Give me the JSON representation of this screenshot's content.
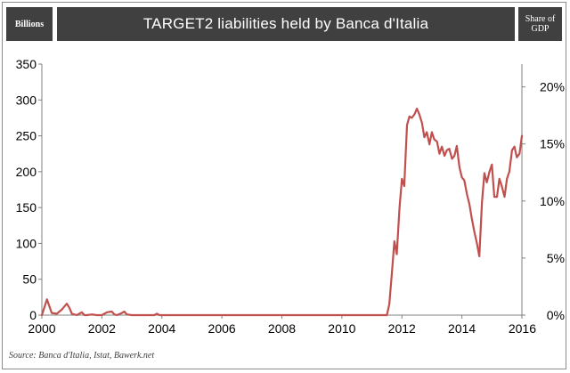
{
  "header": {
    "left_label": "Billions",
    "title": "TARGET2 liabilities held by Banca d'Italia",
    "right_label_line1": "Share of",
    "right_label_line2": "GDP"
  },
  "source": "Source: Banca d'Italia, Istat, Bawerk.net",
  "colors": {
    "series": "#c0504d",
    "header_bg": "#404040",
    "axis": "#808080"
  },
  "chart_data": {
    "type": "line",
    "title": "TARGET2 liabilities held by Banca d'Italia",
    "ylabel": "Billions",
    "y2label": "Share of GDP",
    "xlim": [
      2000,
      2016
    ],
    "ylim": [
      0,
      350
    ],
    "y2lim": [
      0,
      0.22
    ],
    "x_ticks": [
      "2000",
      "2002",
      "2004",
      "2006",
      "2008",
      "2010",
      "2012",
      "2014",
      "2016"
    ],
    "y_ticks": [
      "0",
      "50",
      "100",
      "150",
      "200",
      "250",
      "300",
      "350"
    ],
    "y2_ticks": [
      "0%",
      "5%",
      "10%",
      "15%",
      "20%"
    ],
    "grid": false,
    "legend": "none",
    "series": [
      {
        "x": [
          2000.0,
          2000.17,
          2000.33,
          2000.5,
          2000.67,
          2000.83,
          2000.92,
          2001.0,
          2001.17,
          2001.33,
          2001.42,
          2001.5,
          2001.67,
          2001.83,
          2002.0,
          2002.17,
          2002.33,
          2002.42,
          2002.5,
          2002.67,
          2002.75,
          2002.83,
          2003.0,
          2003.5,
          2003.75,
          2003.83,
          2003.92,
          2004.0,
          2005.0,
          2006.0,
          2007.0,
          2008.0,
          2009.0,
          2010.0,
          2011.0,
          2011.5,
          2011.58,
          2011.67,
          2011.75,
          2011.83,
          2011.92,
          2012.0,
          2012.08,
          2012.17,
          2012.25,
          2012.33,
          2012.42,
          2012.5,
          2012.58,
          2012.67,
          2012.75,
          2012.83,
          2012.92,
          2013.0,
          2013.08,
          2013.17,
          2013.25,
          2013.33,
          2013.42,
          2013.5,
          2013.58,
          2013.67,
          2013.75,
          2013.83,
          2013.92,
          2014.0,
          2014.08,
          2014.17,
          2014.25,
          2014.33,
          2014.42,
          2014.5,
          2014.58,
          2014.67,
          2014.75,
          2014.83,
          2014.92,
          2015.0,
          2015.08,
          2015.17,
          2015.25,
          2015.33,
          2015.42,
          2015.5,
          2015.58,
          2015.67,
          2015.75,
          2015.83,
          2015.92,
          2016.0
        ],
        "y": [
          0,
          22,
          3,
          2,
          8,
          16,
          10,
          2,
          0,
          4,
          0,
          0,
          1,
          0,
          0,
          4,
          5,
          1,
          0,
          3,
          5,
          1,
          0,
          0,
          0,
          2,
          0,
          0,
          0,
          0,
          0,
          0,
          0,
          0,
          0,
          0,
          15,
          60,
          103,
          85,
          150,
          190,
          180,
          265,
          277,
          275,
          280,
          288,
          280,
          268,
          248,
          255,
          238,
          255,
          245,
          242,
          225,
          235,
          222,
          230,
          232,
          218,
          222,
          236,
          206,
          192,
          188,
          168,
          155,
          135,
          115,
          100,
          82,
          158,
          198,
          185,
          200,
          210,
          165,
          165,
          190,
          180,
          165,
          190,
          200,
          230,
          235,
          220,
          225,
          250
        ]
      }
    ]
  }
}
